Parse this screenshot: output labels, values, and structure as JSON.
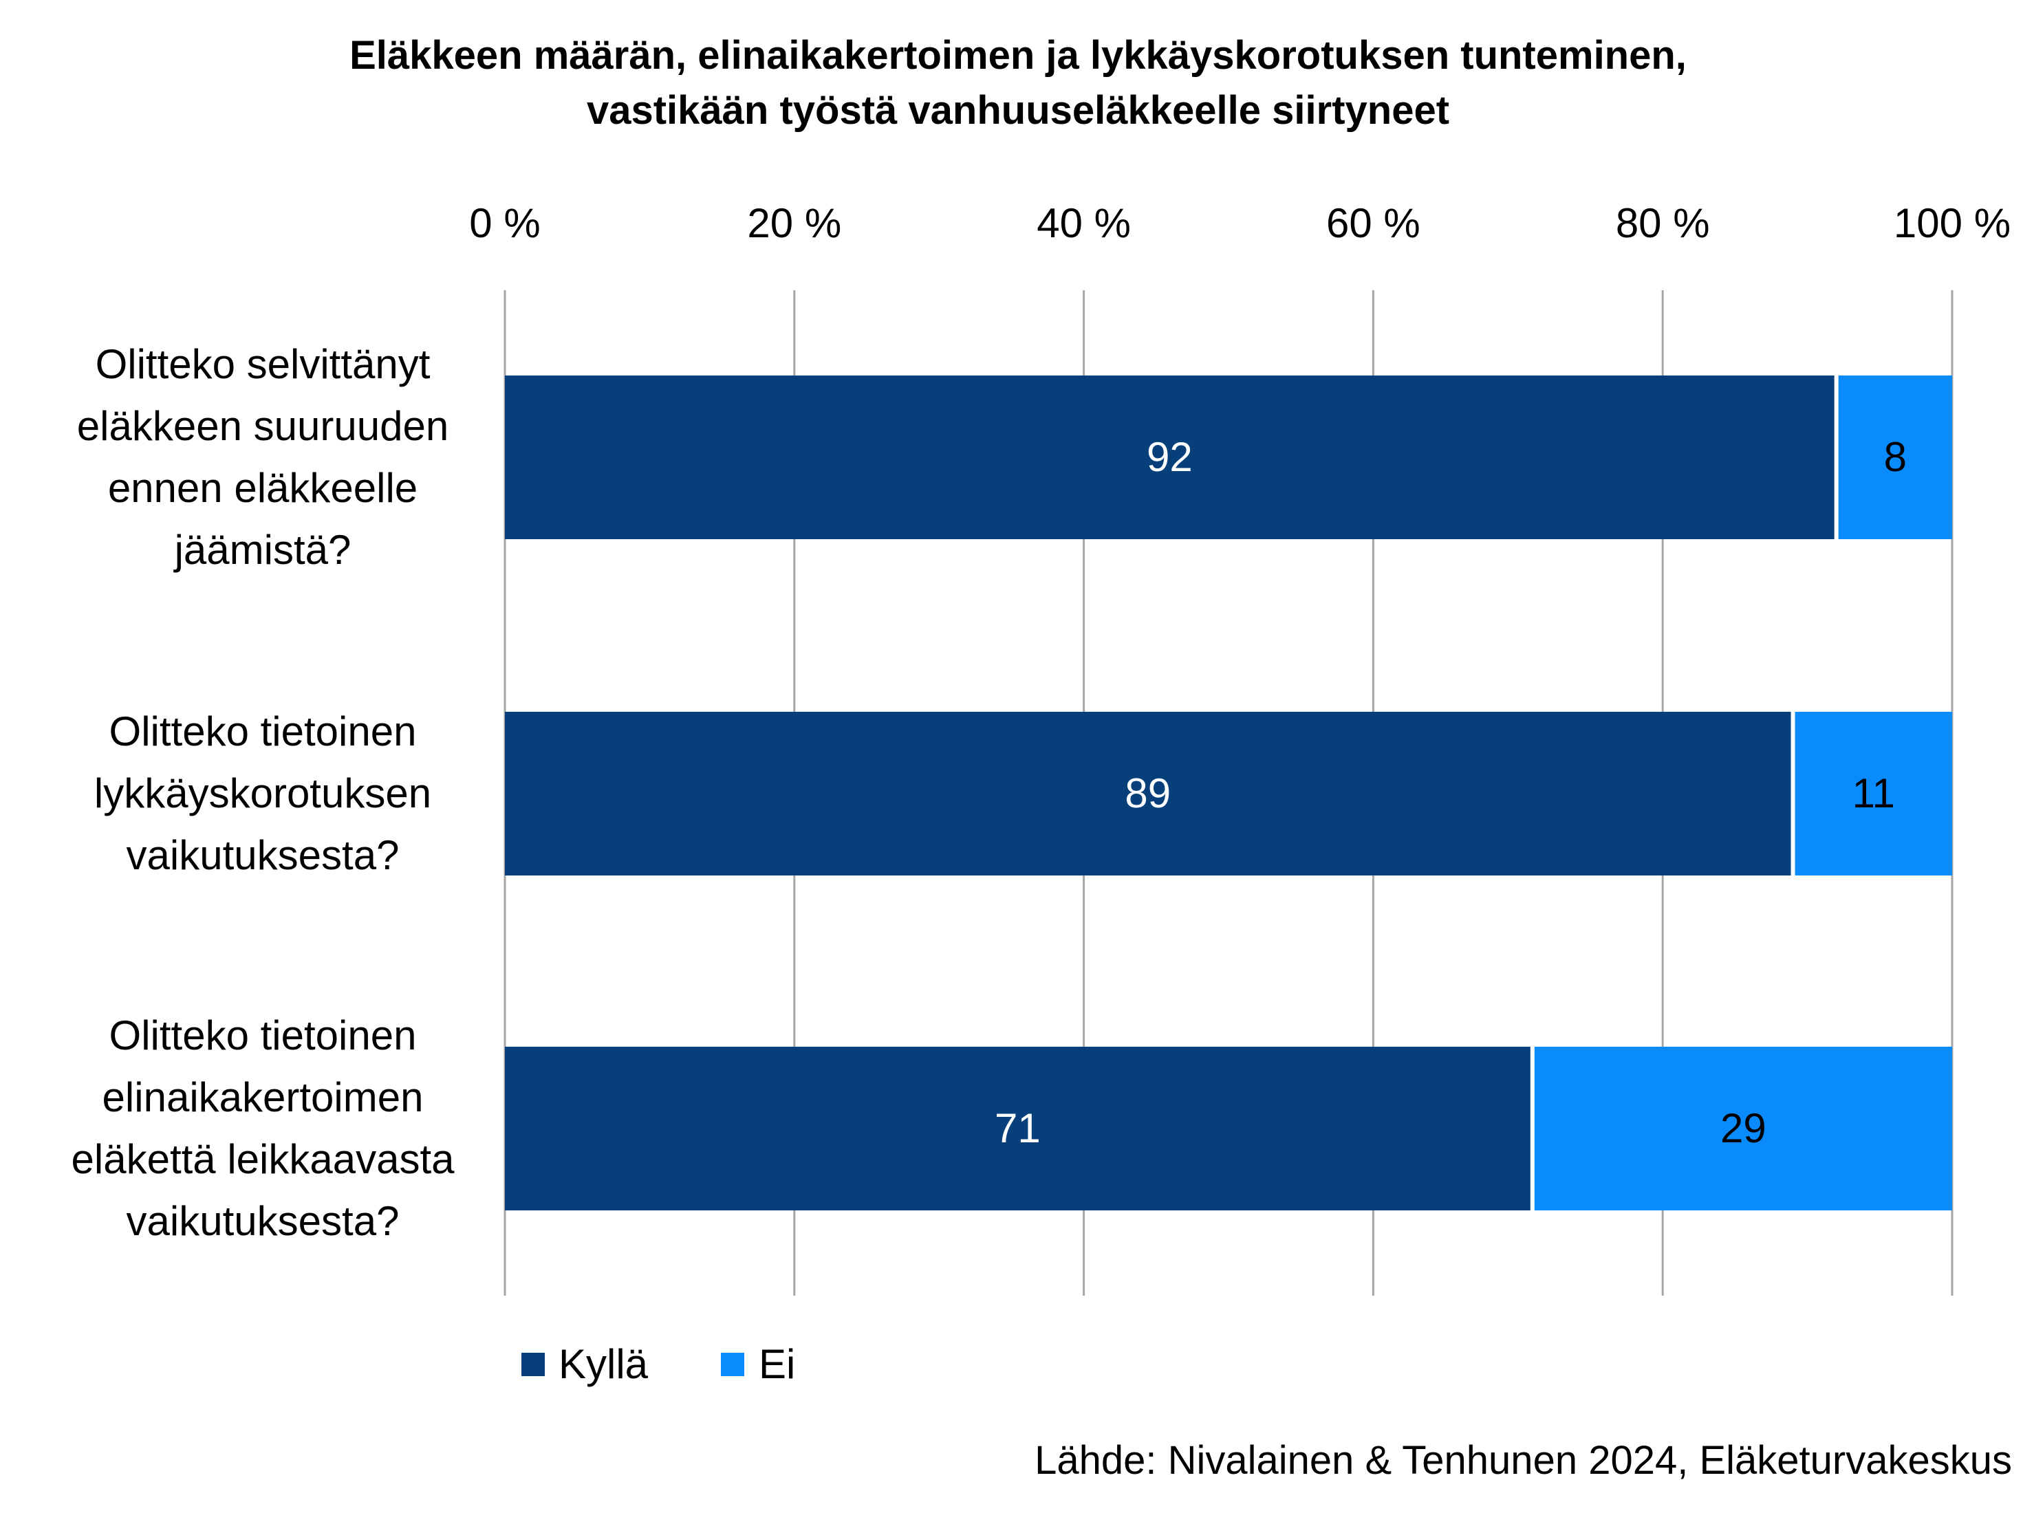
{
  "chart_data": {
    "type": "bar",
    "orientation": "horizontal",
    "stacked": true,
    "title": [
      "Eläkkeen määrän, elinaikakertoimen ja lykkäyskorotuksen tunteminen,",
      "vastikään työstä vanhuuseläkkeelle siirtyneet"
    ],
    "categories": [
      [
        "Olitteko selvittänyt",
        "eläkkeen suuruuden",
        "ennen eläkkeelle",
        "jäämistä?"
      ],
      [
        "Olitteko tietoinen",
        "lykkäyskorotuksen",
        "vaikutuksesta?"
      ],
      [
        "Olitteko tietoinen",
        "elinaikakertoimen",
        "eläkettä leikkaavasta",
        "vaikutuksesta?"
      ]
    ],
    "series": [
      {
        "name": "Kyllä",
        "color": "#073F7B",
        "label_color": "#ffffff",
        "values": [
          92,
          89,
          71
        ]
      },
      {
        "name": "Ei",
        "color": "#0A8BFC",
        "label_color": "#000000",
        "values": [
          8,
          11,
          29
        ]
      }
    ],
    "x_axis": {
      "ticks": [
        0,
        20,
        40,
        60,
        80,
        100
      ],
      "tick_labels": [
        "0 %",
        "20 %",
        "40 %",
        "60 %",
        "80 %",
        "100 %"
      ],
      "range": [
        0,
        100
      ],
      "position": "top"
    },
    "grid": true,
    "legend_position": "bottom-left",
    "source": "Lähde: Nivalainen & Tenhunen 2024, Eläketurvakeskus"
  }
}
